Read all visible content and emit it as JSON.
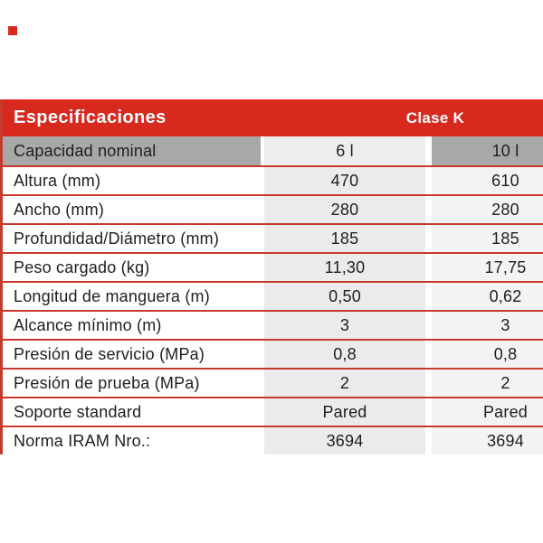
{
  "colors": {
    "header_red": "#d8291f",
    "line_red": "#c63a2d",
    "row_gray": "#a8a8a8",
    "col6_bg": "#ebebeb",
    "col10_bg": "#f3f3f3",
    "cap6_bg": "#ededed",
    "text_dark": "#1e1e1e",
    "page_bg": "#ffffff"
  },
  "decoration": {
    "red_square": true
  },
  "table": {
    "header": {
      "title": "Especificaciones",
      "class_label": "Clase K"
    },
    "capacity_row": {
      "label": "Capacidad nominal",
      "v6": "6 l",
      "v10": "10 l"
    },
    "rows": [
      {
        "label": "Altura (mm)",
        "v6": "470",
        "v10": "610"
      },
      {
        "label": "Ancho (mm)",
        "v6": "280",
        "v10": "280"
      },
      {
        "label": "Profundidad/Diámetro (mm)",
        "v6": "185",
        "v10": "185"
      },
      {
        "label": "Peso cargado (kg)",
        "v6": "11,30",
        "v10": "17,75"
      },
      {
        "label": "Longitud de manguera (m)",
        "v6": "0,50",
        "v10": "0,62"
      },
      {
        "label": "Alcance mínimo (m)",
        "v6": "3",
        "v10": "3"
      },
      {
        "label": "Presión de servicio (MPa)",
        "v6": "0,8",
        "v10": "0,8"
      },
      {
        "label": "Presión de prueba (MPa)",
        "v6": "2",
        "v10": "2"
      },
      {
        "label": "Soporte standard",
        "v6": "Pared",
        "v10": "Pared"
      },
      {
        "label": "Norma IRAM Nro.:",
        "v6": "3694",
        "v10": "3694"
      }
    ]
  }
}
